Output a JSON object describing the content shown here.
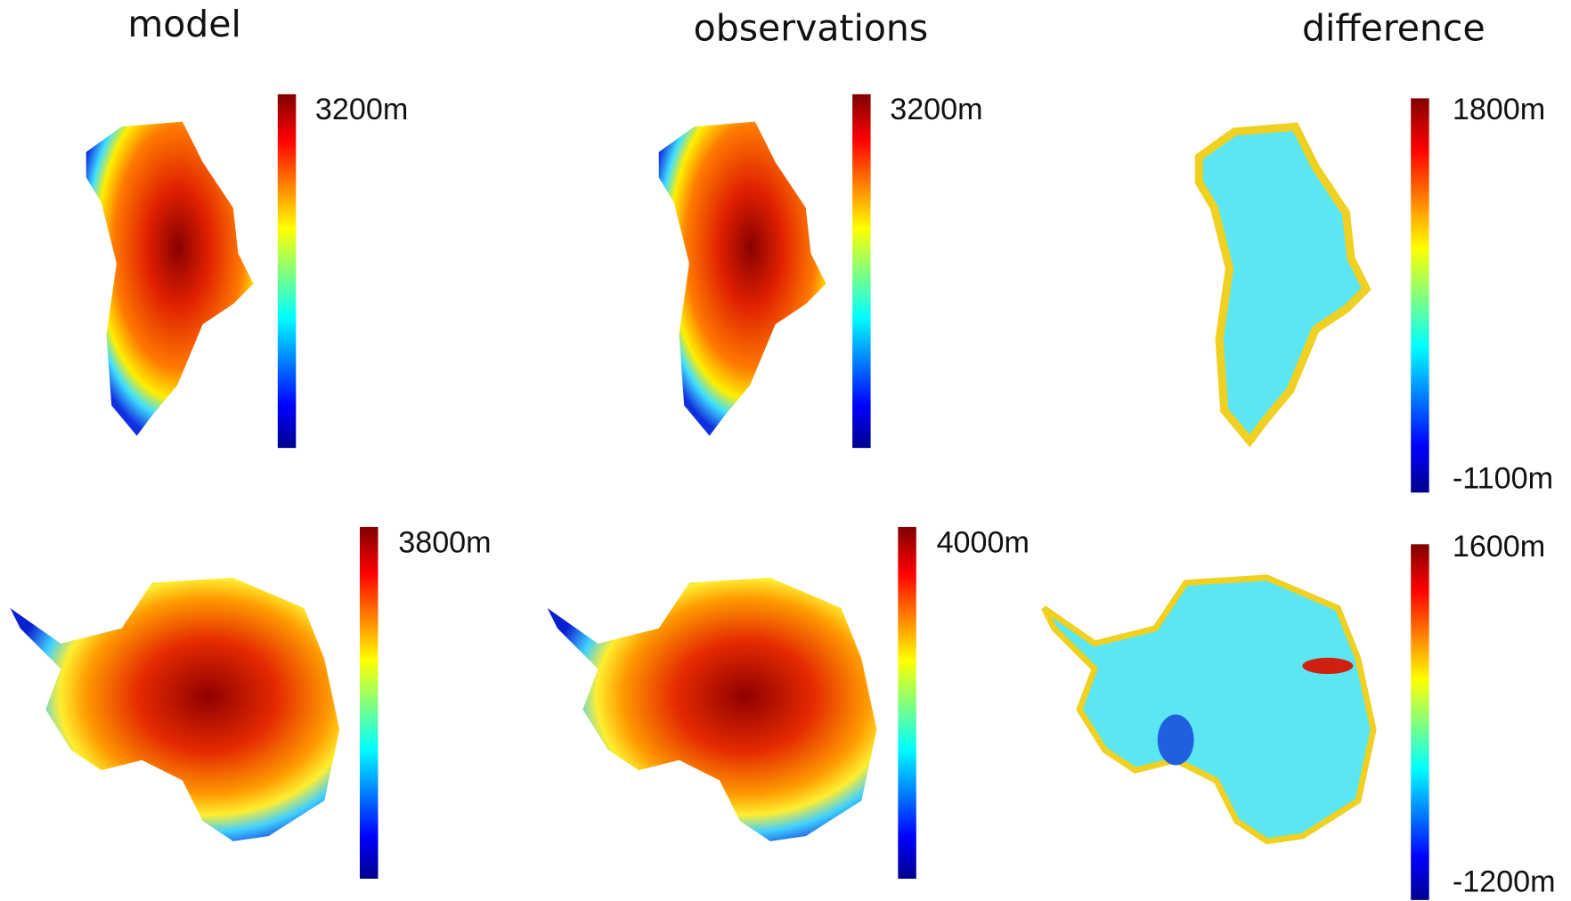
{
  "titles": [
    "model",
    "observations",
    "difference"
  ],
  "colorbars": [
    {
      "max": "3200m"
    },
    {
      "max": "3200m"
    },
    {
      "max": "1800m",
      "min": "-1100m"
    },
    {
      "max": "3800m"
    },
    {
      "max": "4000m"
    },
    {
      "max": "1600m",
      "min": "-1200m"
    }
  ]
}
